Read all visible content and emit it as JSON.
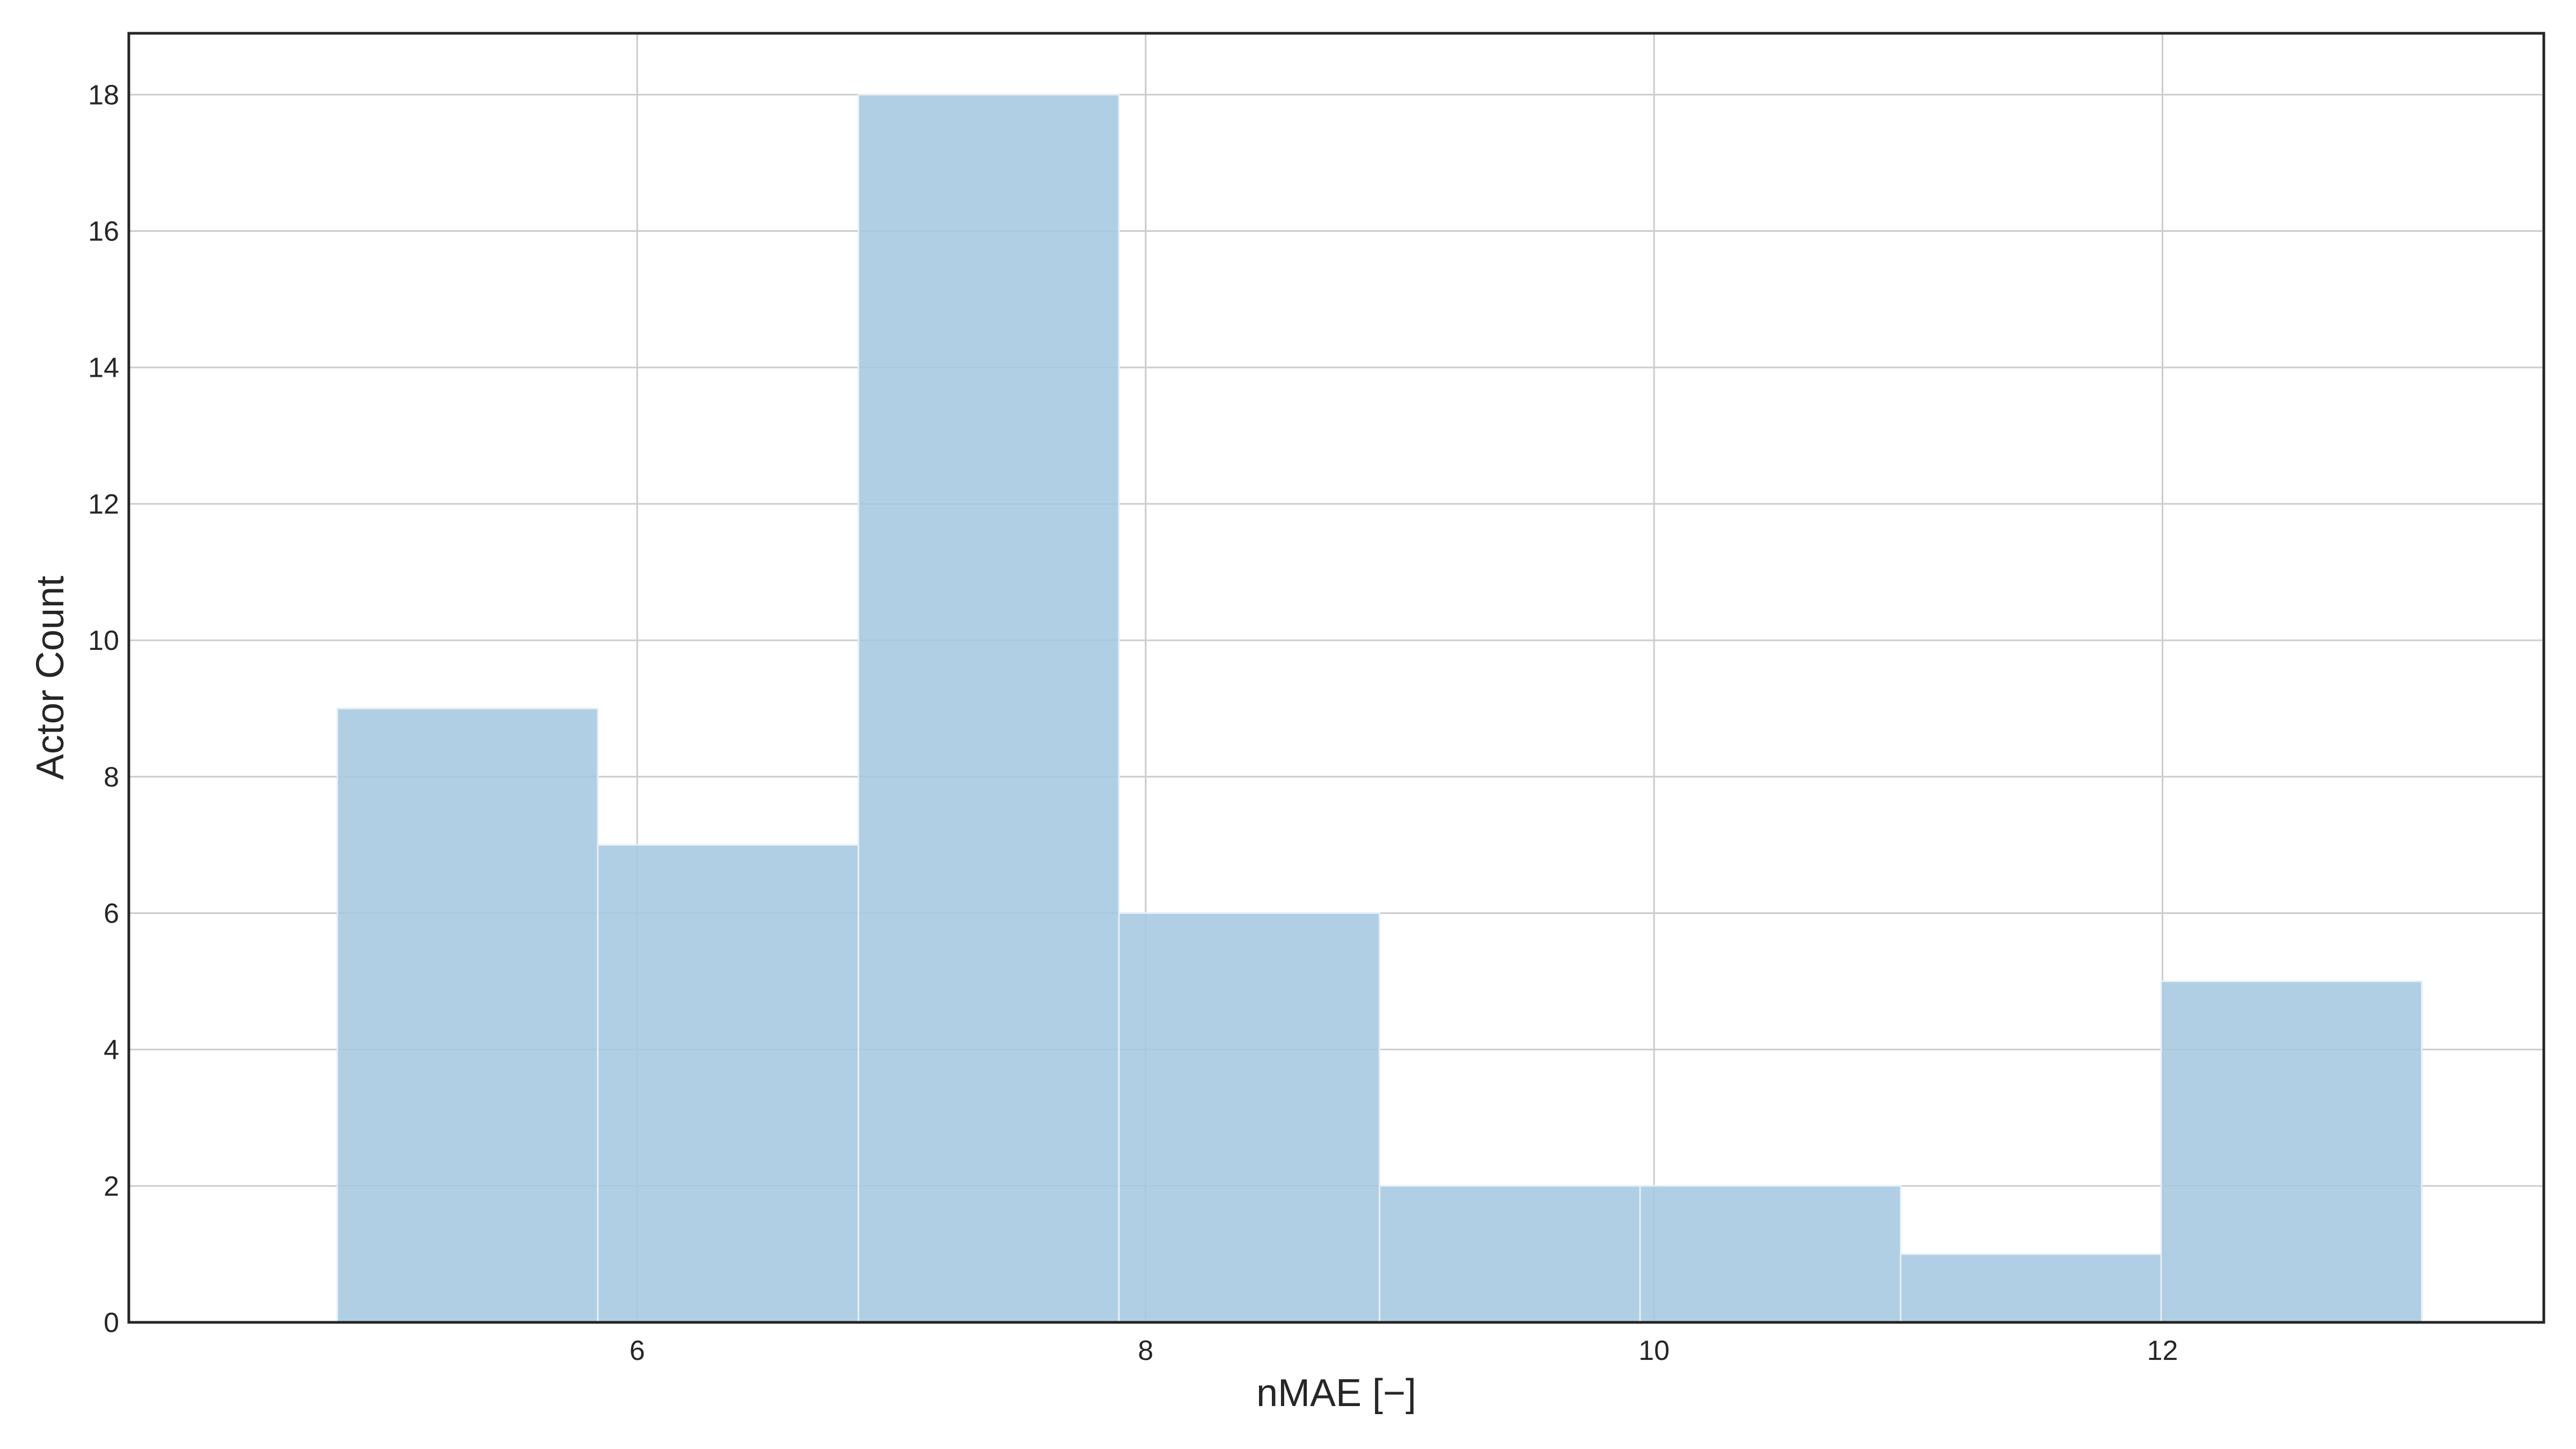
{
  "chart_data": {
    "type": "bar",
    "subtype": "histogram",
    "xlabel": "nMAE [−]",
    "ylabel": "Actor Count",
    "xlim": [
      4.0,
      13.5
    ],
    "ylim": [
      0,
      18.9
    ],
    "xticks": [
      6,
      8,
      10,
      12
    ],
    "yticks": [
      0,
      2,
      4,
      6,
      8,
      10,
      12,
      14,
      16,
      18
    ],
    "bin_edges": [
      4.82,
      5.845,
      6.87,
      7.895,
      8.92,
      9.945,
      10.97,
      11.995,
      13.02
    ],
    "values": [
      9,
      7,
      18,
      6,
      2,
      2,
      1,
      5
    ],
    "grid": true,
    "legend": "none",
    "bar_color": "#a6c8e0",
    "bar_edge_color": "#e6eff6"
  }
}
